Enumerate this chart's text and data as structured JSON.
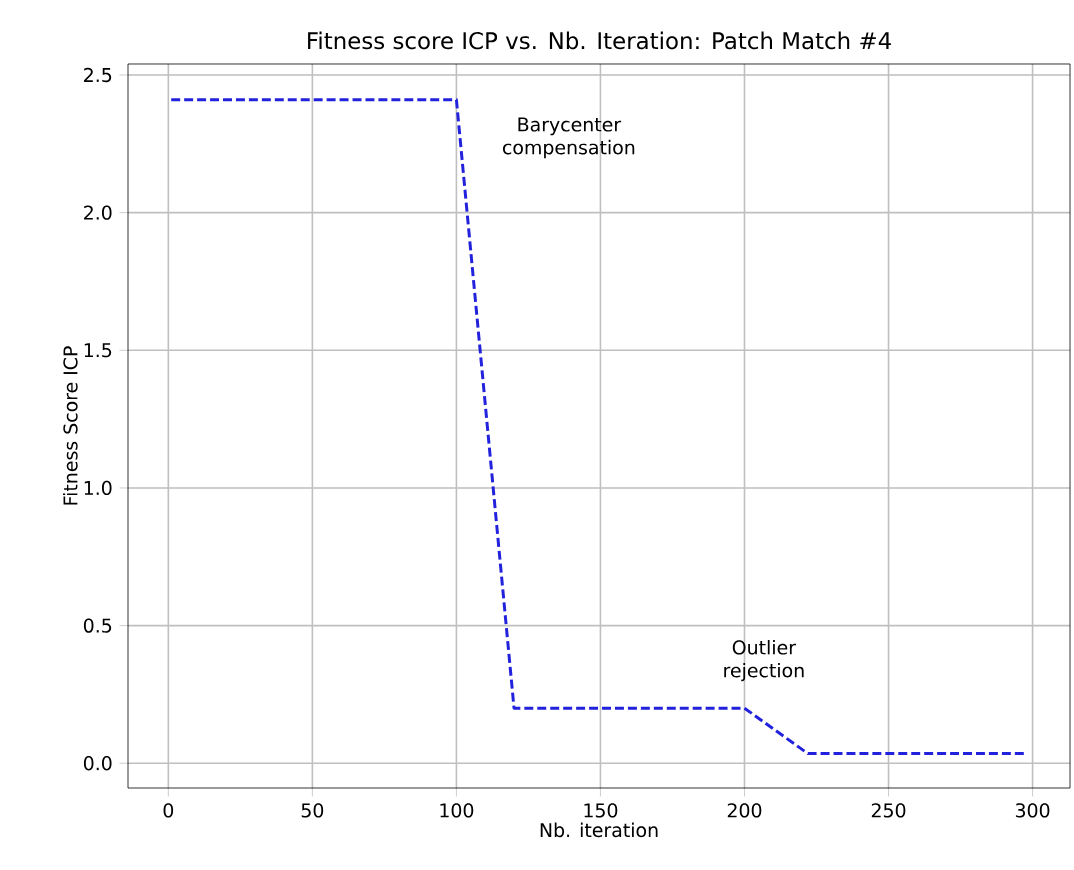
{
  "chart_data": {
    "type": "line",
    "title": "Fitness score ICP vs. Nb. Iteration: Patch Match #4",
    "xlabel": "Nb. iteration",
    "ylabel": "Fitness Score ICP",
    "x": [
      1,
      100,
      120,
      200,
      222,
      298
    ],
    "series": [
      {
        "color": "#2222dd",
        "values": [
          2.41,
          2.41,
          0.2,
          0.2,
          0.035,
          0.035
        ]
      }
    ],
    "xlim": [
      -14,
      313
    ],
    "ylim": [
      -0.09,
      2.54
    ],
    "xticks": [
      0,
      50,
      100,
      150,
      200,
      250,
      300
    ],
    "yticks": [
      {
        "value": 0,
        "label": "0.0"
      },
      {
        "value": 0.5,
        "label": "0.5"
      },
      {
        "value": 1,
        "label": "1.0"
      },
      {
        "value": 1.5,
        "label": "1.5"
      },
      {
        "value": 2,
        "label": "2.0"
      },
      {
        "value": 2.5,
        "label": "2.5"
      }
    ],
    "annotations": [
      "Barycenter compensation",
      "Outlier rejection"
    ],
    "grid": true,
    "marker": "none",
    "line_style": "dashed"
  }
}
